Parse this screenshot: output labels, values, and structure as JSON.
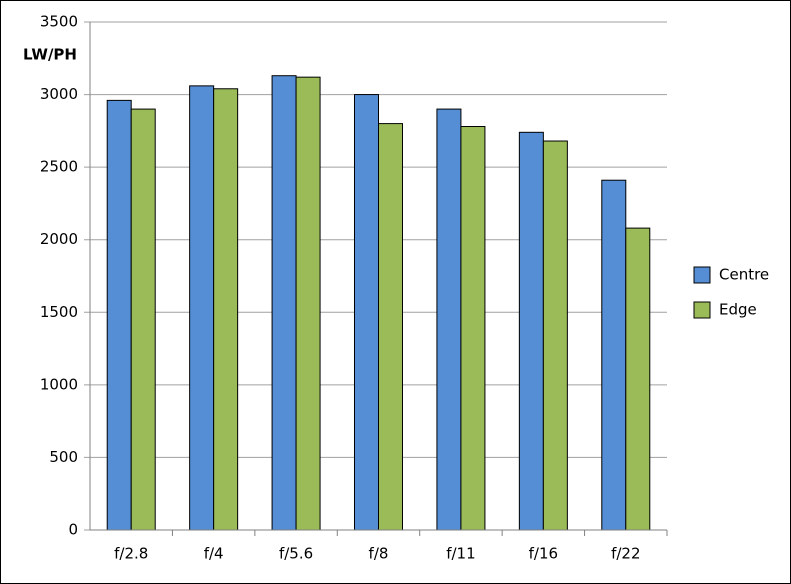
{
  "chart_data": {
    "type": "bar",
    "y_label": "LW/PH",
    "categories": [
      "f/2.8",
      "f/4",
      "f/5.6",
      "f/8",
      "f/11",
      "f/16",
      "f/22"
    ],
    "series": [
      {
        "name": "Centre",
        "color": "#558ed5",
        "values": [
          2960,
          3060,
          3130,
          3000,
          2900,
          2740,
          2410
        ]
      },
      {
        "name": "Edge",
        "color": "#9bbb59",
        "values": [
          2900,
          3040,
          3120,
          2800,
          2780,
          2680,
          2080
        ]
      }
    ],
    "ylim": [
      0,
      3500
    ],
    "yticks": [
      0,
      500,
      1000,
      1500,
      2000,
      2500,
      3000,
      3500
    ],
    "grid": true,
    "legend": "right"
  }
}
